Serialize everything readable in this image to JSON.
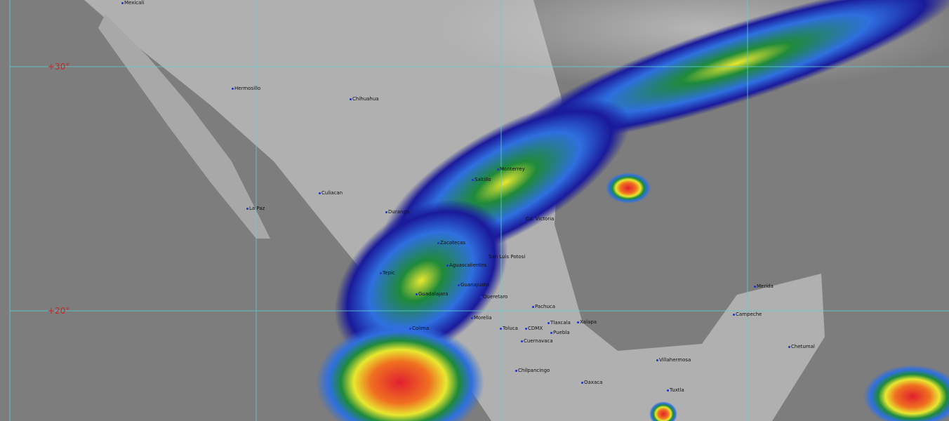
{
  "latitude_labels": [
    "+30°",
    "+20°"
  ],
  "cities": [
    "Mexicali",
    "Hermosillo",
    "Chihuahua",
    "Culiacan",
    "La Paz",
    "Durango",
    "Monterrey",
    "Saltillo",
    "Cd. Victoria",
    "Zacatecas",
    "San Luis Potosi",
    "Aguascalientes",
    "Tepic",
    "Guanajuato",
    "Guadalajara",
    "Queretaro",
    "Pachuca",
    "Morelia",
    "Xalapa",
    "Toluca",
    "CDMX",
    "Tlaxcala",
    "Puebla",
    "Cuernavaca",
    "Colima",
    "Chilpancingo",
    "Oaxaca",
    "Villahermosa",
    "Tuxtla",
    "Merida",
    "Campeche",
    "Chetumal"
  ],
  "colors": {
    "grid": "#5fd0d0",
    "lat_label": "#d42020",
    "ocean": "#7d7d7d",
    "land": "#b8b8b8",
    "precip_scale": [
      "#1a1a9a",
      "#2f6fe0",
      "#4ab0e8",
      "#1e8a3a",
      "#e8e830",
      "#f08020",
      "#e02020",
      "#c0208a"
    ]
  }
}
